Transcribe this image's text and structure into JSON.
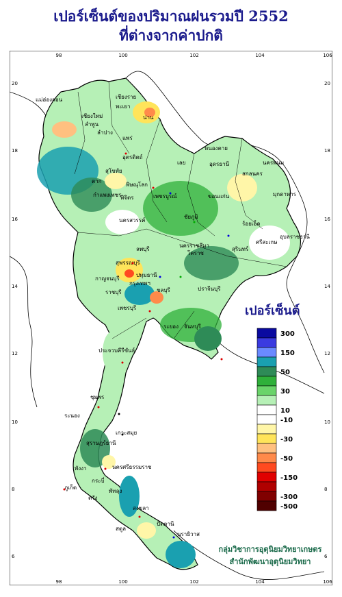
{
  "title": {
    "line1": "เปอร์เซ็นต์ของปริมาณฝนรวมปี 2552",
    "line2": "ที่ต่างจากค่าปกติ"
  },
  "axes": {
    "lon_ticks": [
      "98",
      "100",
      "102",
      "104",
      "106"
    ],
    "lat_ticks": [
      "20",
      "18",
      "16",
      "14",
      "12",
      "10",
      "8",
      "6"
    ]
  },
  "legend": {
    "title": "เปอร์เซ็นต์",
    "bins": [
      {
        "color": "#0a0aa0",
        "label": "300"
      },
      {
        "color": "#3a3ae0",
        "label": ""
      },
      {
        "color": "#6a8aff",
        "label": "150"
      },
      {
        "color": "#1aa0b0",
        "label": ""
      },
      {
        "color": "#2e8b57",
        "label": "50"
      },
      {
        "color": "#2fb03a",
        "label": ""
      },
      {
        "color": "#6ad46a",
        "label": "30"
      },
      {
        "color": "#b6f0b6",
        "label": ""
      },
      {
        "color": "#ffffff",
        "label": "10"
      },
      {
        "color": "#ffffff",
        "label": "-10"
      },
      {
        "color": "#fff6a8",
        "label": ""
      },
      {
        "color": "#ffe45a",
        "label": "-30"
      },
      {
        "color": "#ffc080",
        "label": ""
      },
      {
        "color": "#ff8a4a",
        "label": "-50"
      },
      {
        "color": "#ff4a20",
        "label": ""
      },
      {
        "color": "#e00000",
        "label": "-150"
      },
      {
        "color": "#b00000",
        "label": ""
      },
      {
        "color": "#800000",
        "label": "-300"
      },
      {
        "color": "#500000",
        "label": "-500"
      }
    ]
  },
  "credit": {
    "line1": "กลุ่มวิชาการอุตุนิยมวิทยาเกษตร",
    "line2": "สำนักพัฒนาอุตุนิยมวิทยา"
  },
  "provinces": [
    "เชียงราย",
    "แม่ฮ่องสอน",
    "น่าน",
    "เชียงใหม่",
    "ลำพูน",
    "ลำปาง",
    "พะเยา",
    "แพร่",
    "อุตรดิตถ์",
    "ตาก",
    "สุโขทัย",
    "พิษณุโลก",
    "กำแพงเพชร",
    "พิจิตร",
    "เพชรบูรณ์",
    "เลย",
    "หนองคาย",
    "อุดรธานี",
    "นครพนม",
    "สกลนคร",
    "มุกดาหาร",
    "ขอนแก่น",
    "ชัยภูมิ",
    "นครสวรรค์",
    "อุบลราชธานี",
    "ร้อยเอ็ด",
    "ศรีสะเกษ",
    "นครราชสีมา",
    "โคราช",
    "สุรินทร์",
    "ลพบุรี",
    "สุพรรณบุรี",
    "กาญจนบุรี",
    "ปทุมธานี",
    "กรุงเทพฯ",
    "ราชบุรี",
    "ชลบุรี",
    "เพชรบุรี",
    "ระยอง",
    "จันทบุรี",
    "ปราจีนบุรี",
    "ประจวบคีรีขันธ์",
    "ชุมพร",
    "ระนอง",
    "สุราษฎร์ธานี",
    "ภูเก็ต",
    "พังงา",
    "กระบี่",
    "นครศรีธรรมราช",
    "ตรัง",
    "พัทลุง",
    "สงขลา",
    "สตูล",
    "ปัตตานี",
    "นราธิวาส",
    "เกาะสมุย"
  ]
}
